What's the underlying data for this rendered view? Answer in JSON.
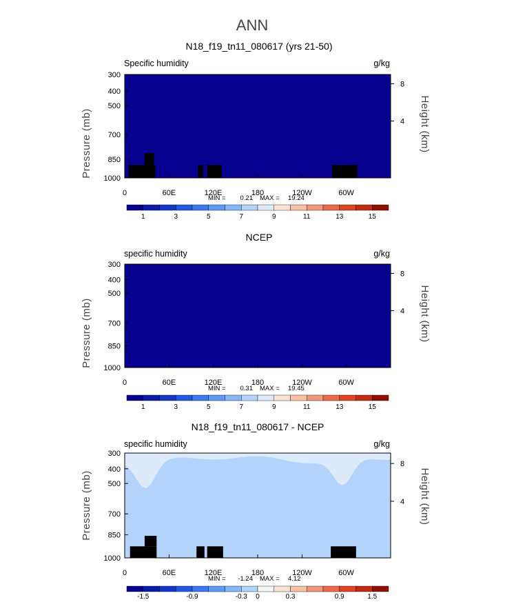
{
  "figure": {
    "title": "ANN"
  },
  "chart_data": [
    {
      "type": "heatmap",
      "title": "N18_f19_tn11_080617 (yrs 21-50)",
      "left_label": "Specific humidity",
      "units": "g/kg",
      "ylabel": "Pressure (mb)",
      "ylabel_right": "Height (km)",
      "y_ticks": [
        "300",
        "400",
        "500",
        "700",
        "850",
        "1000"
      ],
      "y_right_ticks": [
        "8",
        "4"
      ],
      "x_ticks": [
        "0",
        "60E",
        "120E",
        "180",
        "120W",
        "60W"
      ],
      "stats": {
        "min_label": "MIN =",
        "min": "0.21",
        "max_label": "MAX =",
        "max": "19.24"
      },
      "colorbar_labels": [
        "1",
        "3",
        "5",
        "7",
        "9",
        "11",
        "13",
        "15"
      ]
    },
    {
      "type": "heatmap",
      "title": "NCEP",
      "left_label": "specific humidity",
      "units": "g/kg",
      "ylabel": "Pressure (mb)",
      "ylabel_right": "Height (km)",
      "y_ticks": [
        "300",
        "400",
        "500",
        "700",
        "850",
        "1000"
      ],
      "y_right_ticks": [
        "8",
        "4"
      ],
      "x_ticks": [
        "0",
        "60E",
        "120E",
        "180",
        "120W",
        "60W"
      ],
      "stats": {
        "min_label": "MIN =",
        "min": "0.31",
        "max_label": "MAX =",
        "max": "19.45"
      },
      "colorbar_labels": [
        "1",
        "3",
        "5",
        "7",
        "9",
        "11",
        "13",
        "15"
      ]
    },
    {
      "type": "heatmap",
      "title": "N18_f19_tn11_080617 - NCEP",
      "left_label": "specific humidity",
      "units": "g/kg",
      "ylabel": "Pressure (mb)",
      "ylabel_right": "Height (km)",
      "y_ticks": [
        "300",
        "400",
        "500",
        "700",
        "850",
        "1000"
      ],
      "y_right_ticks": [
        "8",
        "4"
      ],
      "x_ticks": [
        "0",
        "60E",
        "120E",
        "180",
        "120W",
        "60W"
      ],
      "stats": {
        "min_label": "MIN =",
        "min": "-1.24",
        "max_label": "MAX =",
        "max": "4.12"
      },
      "colorbar_labels": [
        "-1.5",
        "-0.9",
        "-0.3",
        "0",
        "0.3",
        "0.9",
        "1.5"
      ]
    }
  ],
  "colors": {
    "blue_to_red_16": [
      "#08008f",
      "#0a1ba8",
      "#1437c8",
      "#2458e0",
      "#3c79ee",
      "#5c98f4",
      "#86b7f7",
      "#b4d3fa",
      "#ddeaf9",
      "#fbe3d4",
      "#f8c2a6",
      "#f3977a",
      "#ec6a4c",
      "#df4424",
      "#c22a12",
      "#8e0f03"
    ],
    "diff_16": [
      "#08008f",
      "#0a1ba8",
      "#1437c8",
      "#2458e0",
      "#3c79ee",
      "#5c98f4",
      "#86b7f7",
      "#b4d3fa",
      "#f5f5f5",
      "#fbe3d4",
      "#f8c2a6",
      "#f3977a",
      "#ec6a4c",
      "#df4424",
      "#c22a12",
      "#8e0f03"
    ],
    "land": "#000000"
  }
}
